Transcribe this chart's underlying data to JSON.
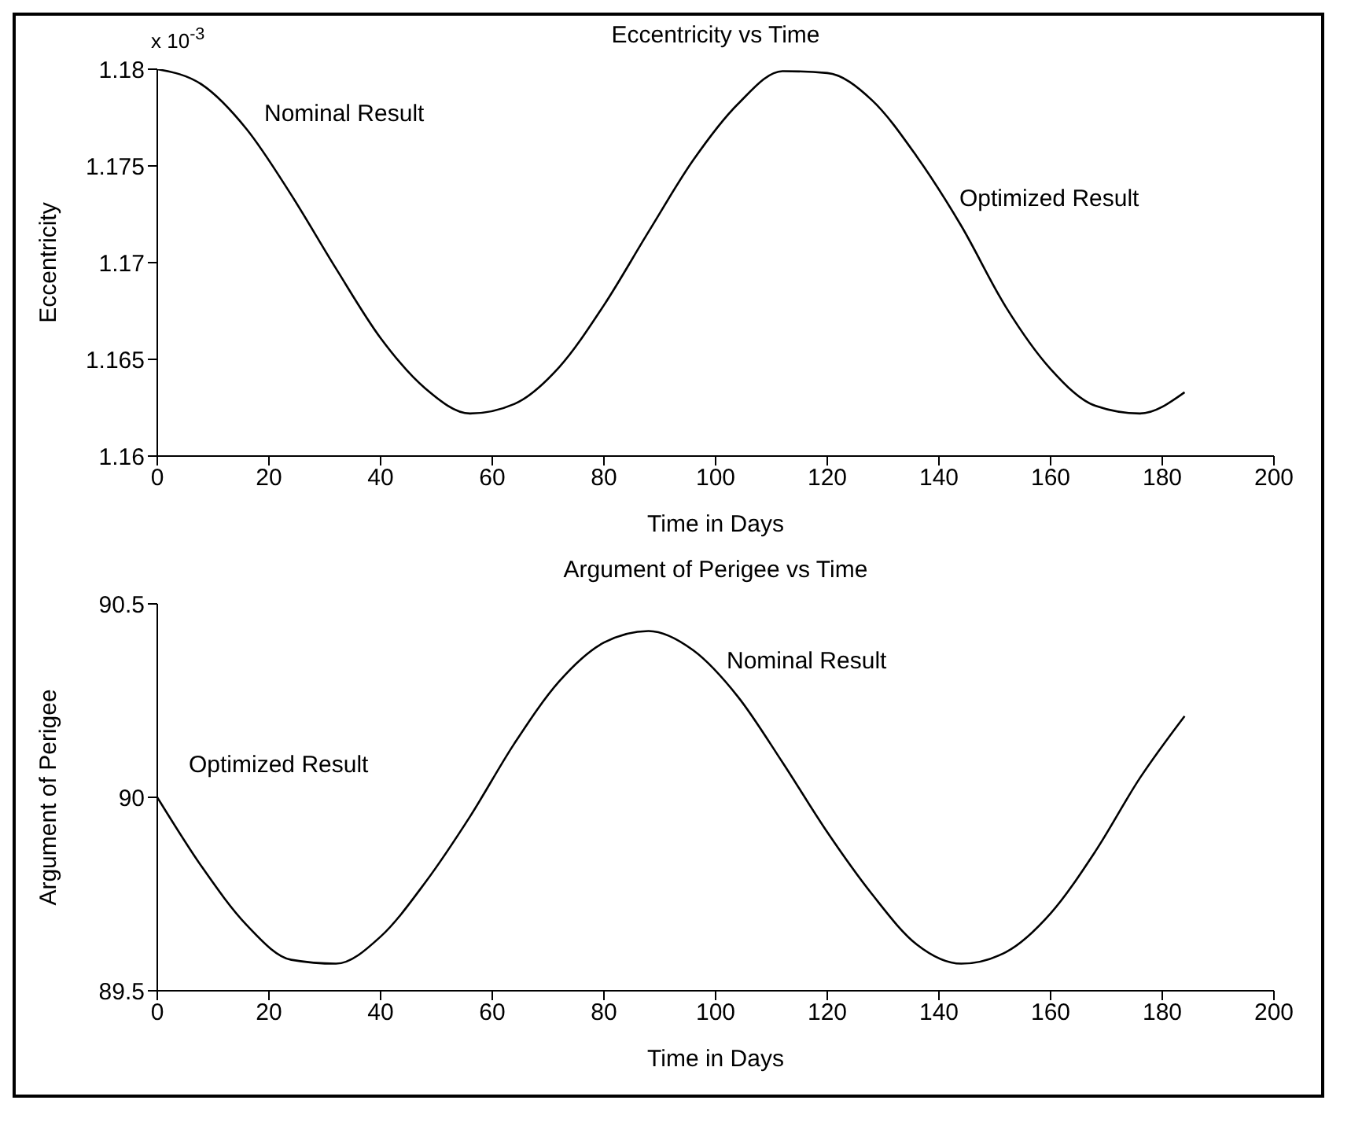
{
  "chart_data": [
    {
      "type": "line",
      "title": "Eccentricity vs Time",
      "xlabel": "Time in Days",
      "ylabel": "Eccentricity",
      "x": [
        0,
        8,
        16,
        24,
        32,
        40,
        48,
        56,
        64,
        72,
        80,
        88,
        96,
        104,
        112,
        120,
        128,
        136,
        144,
        152,
        160,
        168,
        176,
        184
      ],
      "series": [
        {
          "color": "#000000",
          "values": [
            1.18,
            1.1792,
            1.1769,
            1.1735,
            1.1697,
            1.1661,
            1.1635,
            1.1622,
            1.1627,
            1.1646,
            1.1678,
            1.1716,
            1.1753,
            1.1782,
            1.1799,
            1.1798,
            1.1784,
            1.1755,
            1.1719,
            1.1677,
            1.1645,
            1.1626,
            1.1622,
            1.1633
          ]
        }
      ],
      "xlim": [
        0,
        200
      ],
      "xticks": [
        0,
        20,
        40,
        60,
        80,
        100,
        120,
        140,
        160,
        180,
        200
      ],
      "ylim": [
        1.16,
        1.18
      ],
      "yticks": [
        1.16,
        1.165,
        1.17,
        1.175,
        1.18
      ],
      "annotations": [
        "x 10$^{-3}$",
        "Nominal Result",
        "Optimized Result"
      ],
      "grid": false,
      "legend": false,
      "marker": "none",
      "line_style": "solid"
    },
    {
      "type": "line",
      "title": "Argument of Perigee vs Time",
      "xlabel": "Time in Days",
      "ylabel": "Argument of Perigee",
      "x": [
        0,
        8,
        16,
        24,
        32,
        40,
        48,
        56,
        64,
        72,
        80,
        88,
        96,
        104,
        112,
        120,
        128,
        136,
        144,
        152,
        160,
        168,
        176,
        184
      ],
      "series": [
        {
          "color": "#000000",
          "values": [
            90.0,
            89.82,
            89.67,
            89.58,
            89.57,
            89.64,
            89.78,
            89.95,
            90.14,
            90.3,
            90.4,
            90.43,
            90.38,
            90.26,
            90.09,
            89.91,
            89.75,
            89.62,
            89.57,
            89.6,
            89.7,
            89.86,
            90.05,
            90.21
          ]
        }
      ],
      "xlim": [
        0,
        200
      ],
      "xticks": [
        0,
        20,
        40,
        60,
        80,
        100,
        120,
        140,
        160,
        180,
        200
      ],
      "ylim": [
        89.5,
        90.5
      ],
      "yticks": [
        89.5,
        90,
        90.5
      ],
      "annotations": [
        "Optimized Result",
        "Nominal Result"
      ],
      "grid": false,
      "legend": false,
      "marker": "none",
      "line_style": "solid"
    }
  ]
}
